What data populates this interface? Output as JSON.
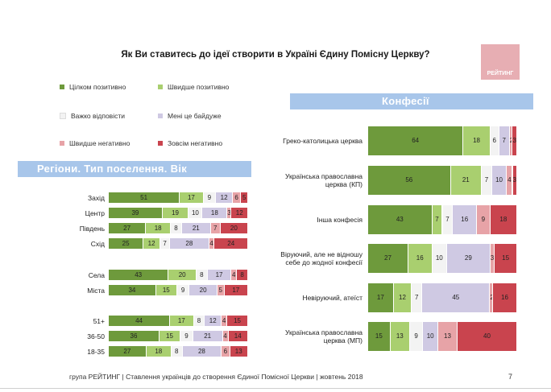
{
  "title": "Як Ви ставитесь до ідеї створити в Україні Єдину Помісну Церкву?",
  "logo": {
    "text": "РЕЙТИНГ"
  },
  "legend": [
    {
      "label": "Цілком позитивно",
      "color": "#6e9a3c"
    },
    {
      "label": "Швидше позитивно",
      "color": "#a9cf6f"
    },
    {
      "label": "Важко відповісти",
      "color": "#f3f3f3"
    },
    {
      "label": "Мені це байдуже",
      "color": "#cfc9e3"
    },
    {
      "label": "Швидше негативно",
      "color": "#e7a3a7"
    },
    {
      "label": "Зовсім негативно",
      "color": "#c9444e"
    }
  ],
  "sections": {
    "regions": "Регіони. Тип поселення. Вік",
    "confessions": "Конфесії"
  },
  "chart_data": [
    {
      "type": "bar",
      "stacked": true,
      "orientation": "horizontal",
      "series_names": [
        "Цілком позитивно",
        "Швидше позитивно",
        "Важко відповісти",
        "Мені це байдуже",
        "Швидше негативно",
        "Зовсім негативно"
      ],
      "categories": [
        "Захід",
        "Центр",
        "Південь",
        "Схід",
        "Села",
        "Міста",
        "51+",
        "36-50",
        "18-35"
      ],
      "values": [
        [
          51,
          17,
          9,
          12,
          6,
          5
        ],
        [
          39,
          19,
          10,
          18,
          3,
          12
        ],
        [
          27,
          18,
          8,
          21,
          7,
          20
        ],
        [
          25,
          12,
          7,
          28,
          4,
          24
        ],
        [
          43,
          20,
          8,
          17,
          4,
          8
        ],
        [
          34,
          15,
          9,
          20,
          5,
          17
        ],
        [
          44,
          17,
          8,
          12,
          4,
          15
        ],
        [
          36,
          15,
          9,
          21,
          4,
          14
        ],
        [
          27,
          18,
          8,
          28,
          6,
          13
        ]
      ]
    },
    {
      "type": "bar",
      "stacked": true,
      "orientation": "horizontal",
      "series_names": [
        "Цілком позитивно",
        "Швидше позитивно",
        "Важко відповісти",
        "Мені це байдуже",
        "Швидше негативно",
        "Зовсім негативно"
      ],
      "categories": [
        [
          "Греко-католицька церква"
        ],
        [
          "Українська православна",
          "церква (КП)"
        ],
        [
          "Інша конфесія"
        ],
        [
          "Віруючий, але не відношу",
          "себе до жодної конфесії"
        ],
        [
          "Невіруючий, атеїст"
        ],
        [
          "Українська православна",
          "церква (МП)"
        ]
      ],
      "values": [
        [
          64,
          18,
          6,
          7,
          2,
          3
        ],
        [
          56,
          21,
          7,
          10,
          4,
          3
        ],
        [
          43,
          7,
          7,
          16,
          9,
          18
        ],
        [
          27,
          16,
          10,
          29,
          3,
          15
        ],
        [
          17,
          12,
          7,
          45,
          2,
          16
        ],
        [
          15,
          13,
          9,
          10,
          13,
          40
        ]
      ]
    }
  ],
  "footer": "група РЕЙТИНГ | Ставлення українців до створення Єдиної Помісної Церкви | жовтень 2018",
  "page_number": "7"
}
